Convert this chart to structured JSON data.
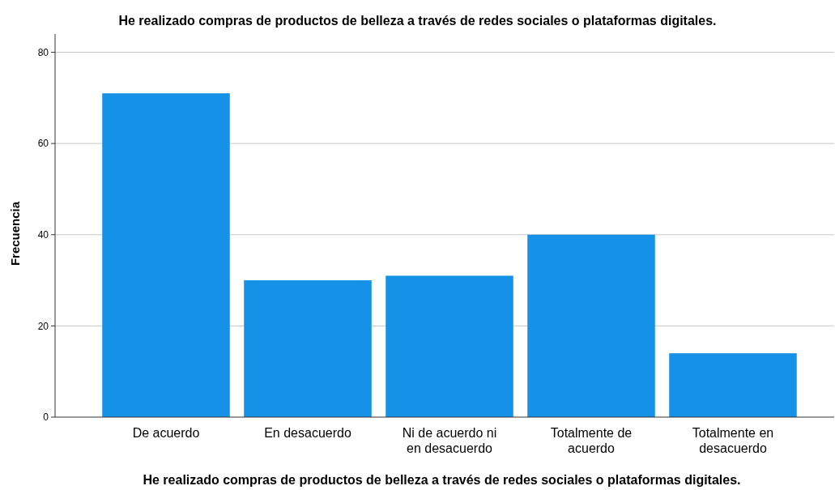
{
  "chart_data": {
    "type": "bar",
    "title": "He realizado compras de productos de belleza a través de redes sociales o plataformas digitales.",
    "xlabel": "He realizado compras de productos de belleza a través de redes sociales o plataformas digitales.",
    "ylabel": "Frecuencia",
    "categories": [
      "De acuerdo",
      "En desacuerdo",
      "Ni de acuerdo ni en desacuerdo",
      "Totalmente de acuerdo",
      "Totalmente en desacuerdo"
    ],
    "values": [
      71,
      30,
      31,
      40,
      14
    ],
    "color": "#1591e8",
    "ylim": [
      0,
      84
    ],
    "yticks": [
      0,
      20,
      40,
      60,
      80
    ],
    "grid": "y"
  }
}
